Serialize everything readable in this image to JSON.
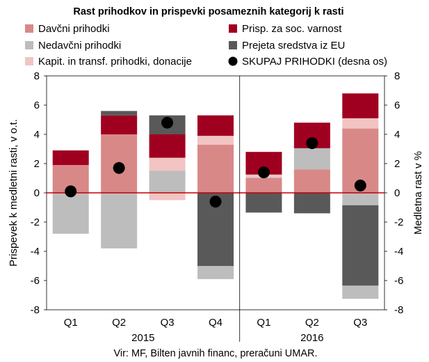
{
  "chart_data": {
    "type": "bar",
    "stacked": true,
    "title": "Rast prihodkov in prispevki posameznih kategorij k rasti",
    "ylabel": "Prispevek k medletni rasti, v o.t.",
    "y2label": "Medletna rast v %",
    "source": "Vir: MF, Bilten javnih financ, preračuni UMAR.",
    "ylim": [
      -8,
      8
    ],
    "y2lim": [
      -8,
      8
    ],
    "yticks": [
      "-8",
      "-6",
      "-4",
      "-2",
      "0",
      "2",
      "4",
      "6",
      "8"
    ],
    "categories": [
      "Q1",
      "Q2",
      "Q3",
      "Q4",
      "Q1",
      "Q2",
      "Q3"
    ],
    "years": [
      {
        "label": "2015",
        "quarters": 4
      },
      {
        "label": "2016",
        "quarters": 3
      }
    ],
    "legend_position": "top",
    "series": [
      {
        "name": "Davčni prihodki",
        "color": "#d98888",
        "values": [
          1.9,
          4.0,
          0.0,
          3.3,
          1.0,
          1.6,
          4.4
        ]
      },
      {
        "name": "Nedavčni prihodki",
        "color": "#bdbdbd",
        "values": [
          -2.8,
          -3.8,
          1.5,
          0.0,
          0.05,
          1.45,
          -0.85
        ]
      },
      {
        "name": "Kapit. in transf. prihodki, donacije",
        "color": "#f2c4c4",
        "values": [
          0.0,
          0.0,
          0.9,
          0.6,
          0.2,
          0.0,
          0.7
        ]
      },
      {
        "name": "Prisp. za soc. varnost",
        "color": "#a00020",
        "values": [
          1.0,
          1.3,
          1.6,
          1.4,
          1.55,
          1.75,
          1.7
        ]
      },
      {
        "name": "Prejeta sredstva iz EU",
        "color": "#595959",
        "values": [
          0.0,
          0.3,
          1.3,
          -5.0,
          -1.35,
          -1.4,
          -5.5
        ]
      },
      {
        "name": "Kapit. in transf. prihodki, donacije (negativno)",
        "color": "#f2c4c4",
        "legend": false,
        "values": [
          0.0,
          0.0,
          -0.5,
          0.0,
          0.0,
          0.0,
          0.0
        ]
      },
      {
        "name": "Prejeta sredstva iz EU (ostanek)",
        "color": "#bdbdbd",
        "legend": false,
        "values": [
          0.0,
          0.0,
          0.0,
          -0.9,
          0.0,
          0.0,
          -0.9
        ]
      }
    ],
    "line_series": {
      "name": "SKUPAJ PRIHODKI (desna os)",
      "color": "#000000",
      "axis": "right",
      "values": [
        0.1,
        1.7,
        4.8,
        -0.6,
        1.4,
        3.4,
        0.5
      ]
    },
    "legend": [
      {
        "name": "Davčni prihodki",
        "color": "#d98888",
        "marker": "square"
      },
      {
        "name": "Prisp. za soc. varnost",
        "color": "#a00020",
        "marker": "square"
      },
      {
        "name": "Nedavčni prihodki",
        "color": "#bdbdbd",
        "marker": "square"
      },
      {
        "name": "Prejeta sredstva iz EU",
        "color": "#595959",
        "marker": "square"
      },
      {
        "name": "Kapit. in transf. prihodki, donacije",
        "color": "#f2c4c4",
        "marker": "square"
      },
      {
        "name": "SKUPAJ PRIHODKI (desna os)",
        "color": "#000000",
        "marker": "circle"
      }
    ],
    "zero_line_color": "#c00000"
  }
}
